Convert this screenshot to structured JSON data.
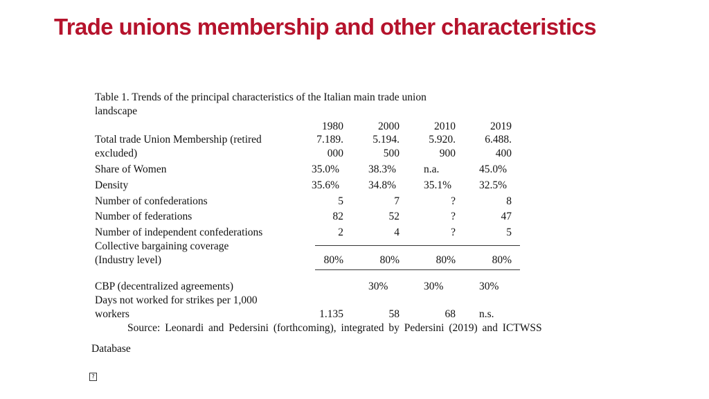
{
  "title": "Trade unions membership and other characteristics",
  "table": {
    "caption_line1": "Table 1. Trends of the principal characteristics of the Italian main trade union",
    "caption_line2": "landscape",
    "years": [
      "1980",
      "2000",
      "2010",
      "2019"
    ],
    "rows": [
      {
        "label_lines": [
          "Total trade Union Membership (retired",
          "excluded)"
        ],
        "values": [
          [
            "7.189.",
            "000"
          ],
          [
            "5.194.",
            "500"
          ],
          [
            "5.920.",
            "900"
          ],
          [
            "6.488.",
            "400"
          ]
        ]
      },
      {
        "label": "Share of Women",
        "values": [
          "35.0%",
          "38.3%",
          "n.a.",
          "45.0%"
        ]
      },
      {
        "label": "Density",
        "values": [
          "35.6%",
          "34.8%",
          "35.1%",
          "32.5%"
        ]
      },
      {
        "label": "Number of confederations",
        "values": [
          "5",
          "7",
          "?",
          "8"
        ]
      },
      {
        "label": "Number of federations",
        "values": [
          "82",
          "52",
          "?",
          "47"
        ]
      },
      {
        "label": "Number of independent confederations",
        "values": [
          "2",
          "4",
          "?",
          "5"
        ]
      },
      {
        "label_lines": [
          "Collective bargaining coverage",
          "(Industry level)"
        ],
        "values": [
          "80%",
          "80%",
          "80%",
          "80%"
        ]
      },
      {
        "label": "CBP (decentralized agreements)",
        "values": [
          "",
          "30%",
          "30%",
          "30%"
        ]
      },
      {
        "label_lines": [
          "Days not worked for strikes per 1,000",
          "workers"
        ],
        "values": [
          "1.135",
          "58",
          "68",
          "n.s."
        ]
      }
    ],
    "source": "Source: Leonardi and Pedersini (forthcoming), integrated by Pedersini (2019) and ICTWSS",
    "source_cont": "Database"
  },
  "footer_glyph": "?"
}
